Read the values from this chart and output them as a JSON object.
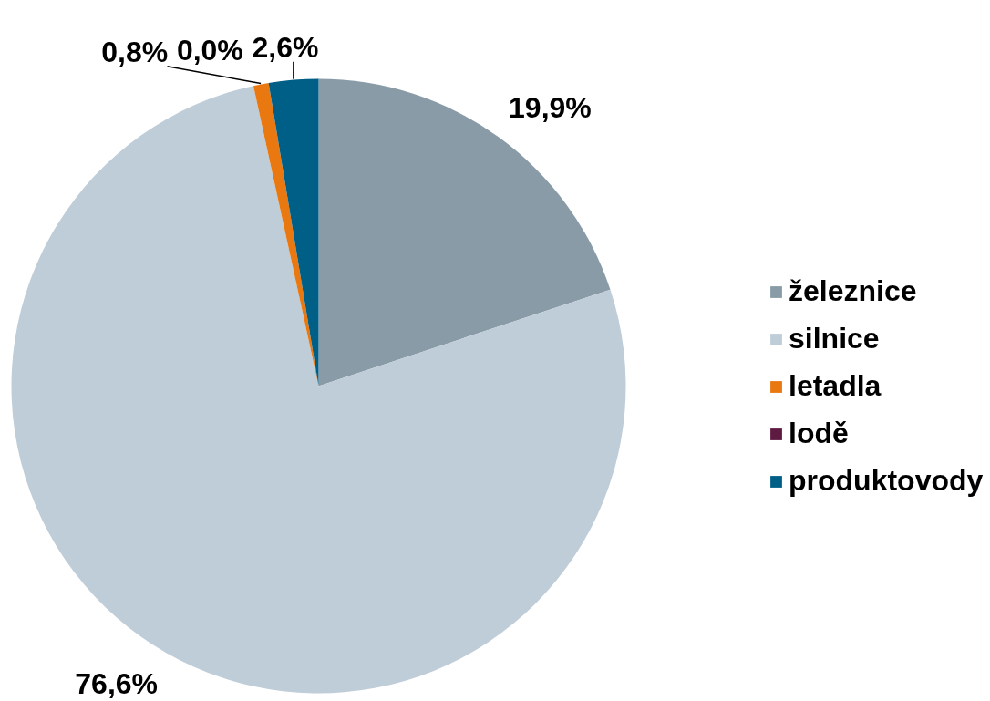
{
  "chart_data": {
    "type": "pie",
    "categories": [
      "železnice",
      "silnice",
      "letadla",
      "lodě",
      "produktovody"
    ],
    "values": [
      19.9,
      76.6,
      0.8,
      0.0,
      2.6
    ],
    "colors": [
      "#8a9ba8",
      "#bfcdd8",
      "#e8780f",
      "#5e1a40",
      "#005f87"
    ],
    "value_labels": [
      "19,9%",
      "76,6%",
      "0,8%",
      "0,0%",
      "2,6%"
    ],
    "legend": "right"
  }
}
